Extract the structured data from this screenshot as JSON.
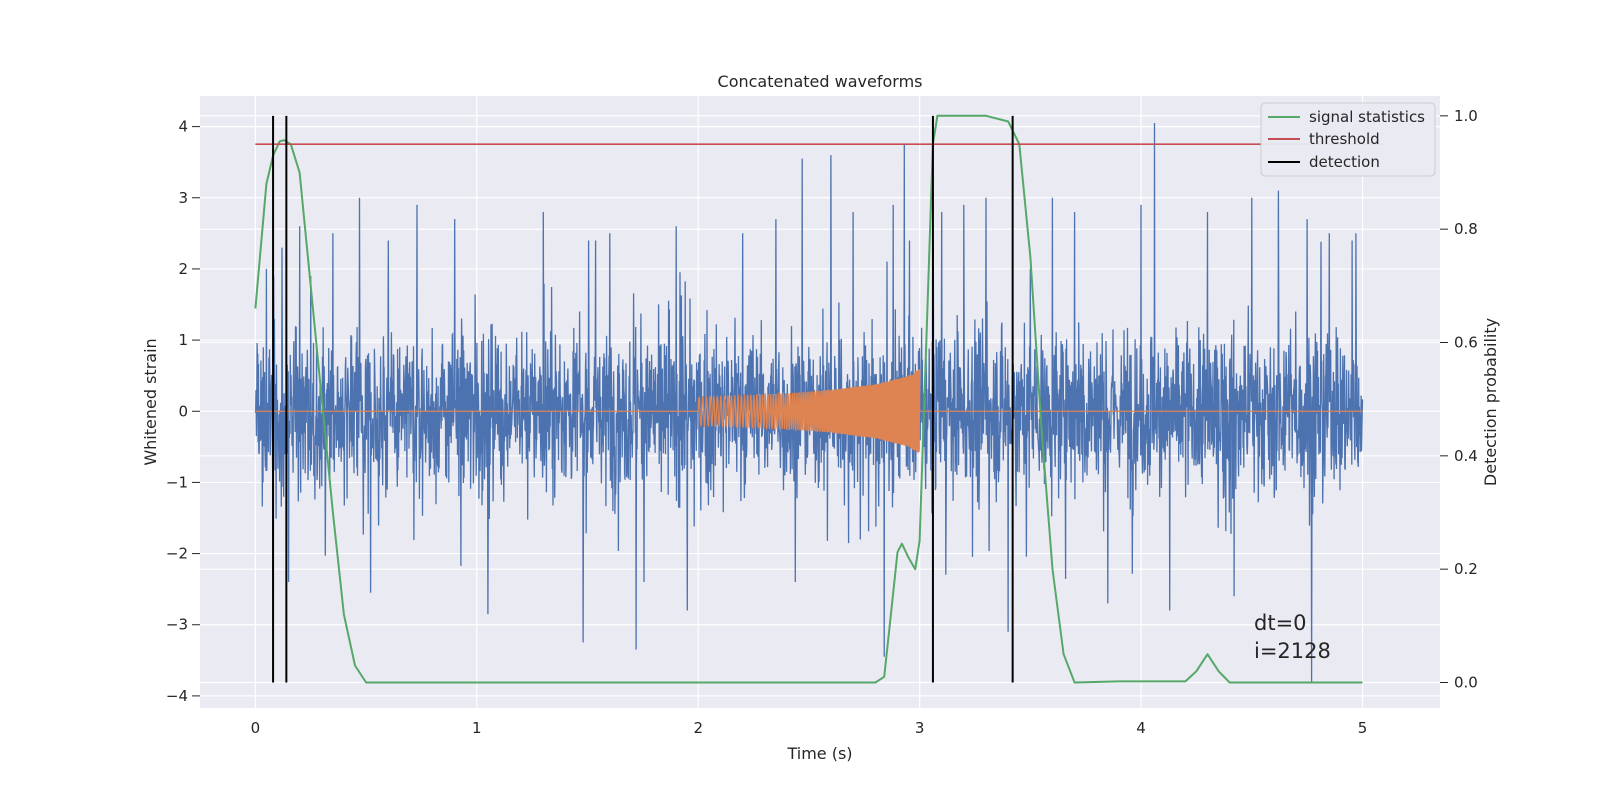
{
  "chart_data": {
    "type": "line",
    "title": "Concatenated waveforms",
    "xlabel": "Time (s)",
    "ylabel": "Whitened strain",
    "y2label": "Detection probability",
    "xlim": [
      -0.25,
      5.35
    ],
    "ylim": [
      -4.17,
      4.43
    ],
    "y2lim": [
      -0.045,
      1.035
    ],
    "xticks": [
      0,
      1,
      2,
      3,
      4,
      5
    ],
    "yticks": [
      -4,
      -3,
      -2,
      -1,
      0,
      1,
      2,
      3,
      4
    ],
    "y2ticks": [
      0.0,
      0.2,
      0.4,
      0.6,
      0.8,
      1.0
    ],
    "grid": true,
    "legend_position": "top-right",
    "legend": [
      {
        "label": "signal statistics",
        "color": "#55a868",
        "series": "signal_statistics"
      },
      {
        "label": "threshold",
        "color": "#c44e52",
        "series": "threshold"
      },
      {
        "label": "detection",
        "color": "#000000",
        "series": "detection"
      }
    ],
    "series": [
      {
        "name": "strain",
        "color": "#4c72b0",
        "axis": "left",
        "x_range": [
          0,
          5
        ],
        "core_amplitude": 0.9,
        "peaks": [
          [
            0.05,
            2.0
          ],
          [
            0.08,
            -2.6
          ],
          [
            0.12,
            2.3
          ],
          [
            0.15,
            -2.4
          ],
          [
            0.2,
            2.6
          ],
          [
            0.25,
            1.9
          ],
          [
            0.35,
            2.5
          ],
          [
            0.47,
            3.0
          ],
          [
            0.52,
            -2.55
          ],
          [
            0.6,
            2.4
          ],
          [
            0.73,
            2.9
          ],
          [
            0.9,
            2.7
          ],
          [
            1.05,
            -2.85
          ],
          [
            1.3,
            2.8
          ],
          [
            1.48,
            -3.25
          ],
          [
            1.6,
            2.5
          ],
          [
            1.72,
            -3.35
          ],
          [
            1.9,
            2.6
          ],
          [
            1.95,
            -2.8
          ],
          [
            2.2,
            2.5
          ],
          [
            2.35,
            2.7
          ],
          [
            2.47,
            3.55
          ],
          [
            2.6,
            3.6
          ],
          [
            2.7,
            2.8
          ],
          [
            2.84,
            -3.45
          ],
          [
            2.88,
            2.9
          ],
          [
            2.93,
            3.75
          ],
          [
            3.1,
            2.8
          ],
          [
            3.2,
            2.9
          ],
          [
            3.3,
            3.0
          ],
          [
            3.4,
            -3.1
          ],
          [
            3.5,
            2.0
          ],
          [
            3.6,
            3.0
          ],
          [
            3.7,
            2.8
          ],
          [
            3.85,
            -2.7
          ],
          [
            4.0,
            2.9
          ],
          [
            4.06,
            4.05
          ],
          [
            4.13,
            -2.8
          ],
          [
            4.3,
            2.8
          ],
          [
            4.42,
            -2.6
          ],
          [
            4.5,
            3.0
          ],
          [
            4.62,
            3.1
          ],
          [
            4.75,
            2.7
          ],
          [
            4.77,
            -3.8
          ],
          [
            4.85,
            2.5
          ],
          [
            4.97,
            2.5
          ]
        ]
      },
      {
        "name": "chirp",
        "color": "#dd8452",
        "axis": "left",
        "x": [
          2.0,
          2.2,
          2.4,
          2.6,
          2.8,
          2.95,
          3.0
        ],
        "amplitude": [
          0.2,
          0.22,
          0.25,
          0.3,
          0.38,
          0.5,
          0.6
        ],
        "flat_after": 3.0,
        "x_range": [
          0,
          5
        ]
      },
      {
        "name": "signal_statistics",
        "color": "#55a868",
        "axis": "right",
        "x": [
          0.0,
          0.05,
          0.08,
          0.11,
          0.13,
          0.16,
          0.2,
          0.25,
          0.3,
          0.35,
          0.4,
          0.45,
          0.5,
          2.8,
          2.84,
          2.87,
          2.9,
          2.92,
          2.95,
          2.98,
          3.0,
          3.03,
          3.06,
          3.08,
          3.12,
          3.3,
          3.4,
          3.45,
          3.5,
          3.55,
          3.6,
          3.65,
          3.7,
          3.9,
          4.2,
          4.25,
          4.3,
          4.35,
          4.4,
          5.0
        ],
        "y": [
          0.66,
          0.88,
          0.93,
          0.955,
          0.957,
          0.95,
          0.9,
          0.7,
          0.5,
          0.3,
          0.12,
          0.03,
          0.0,
          0.0,
          0.01,
          0.12,
          0.23,
          0.245,
          0.22,
          0.2,
          0.25,
          0.6,
          0.95,
          1.0,
          1.0,
          1.0,
          0.99,
          0.95,
          0.75,
          0.45,
          0.2,
          0.05,
          0.0,
          0.002,
          0.002,
          0.02,
          0.05,
          0.02,
          0.0,
          0.0
        ]
      },
      {
        "name": "threshold",
        "color": "#c44e52",
        "axis": "right",
        "x": [
          0,
          5.1
        ],
        "y": [
          0.95,
          0.95
        ]
      }
    ],
    "detections": [
      0.08,
      0.14,
      3.06,
      3.42
    ],
    "annotation": {
      "lines": [
        "dt=0",
        "i=2128"
      ],
      "x": 4.5,
      "y": -3.3
    }
  }
}
